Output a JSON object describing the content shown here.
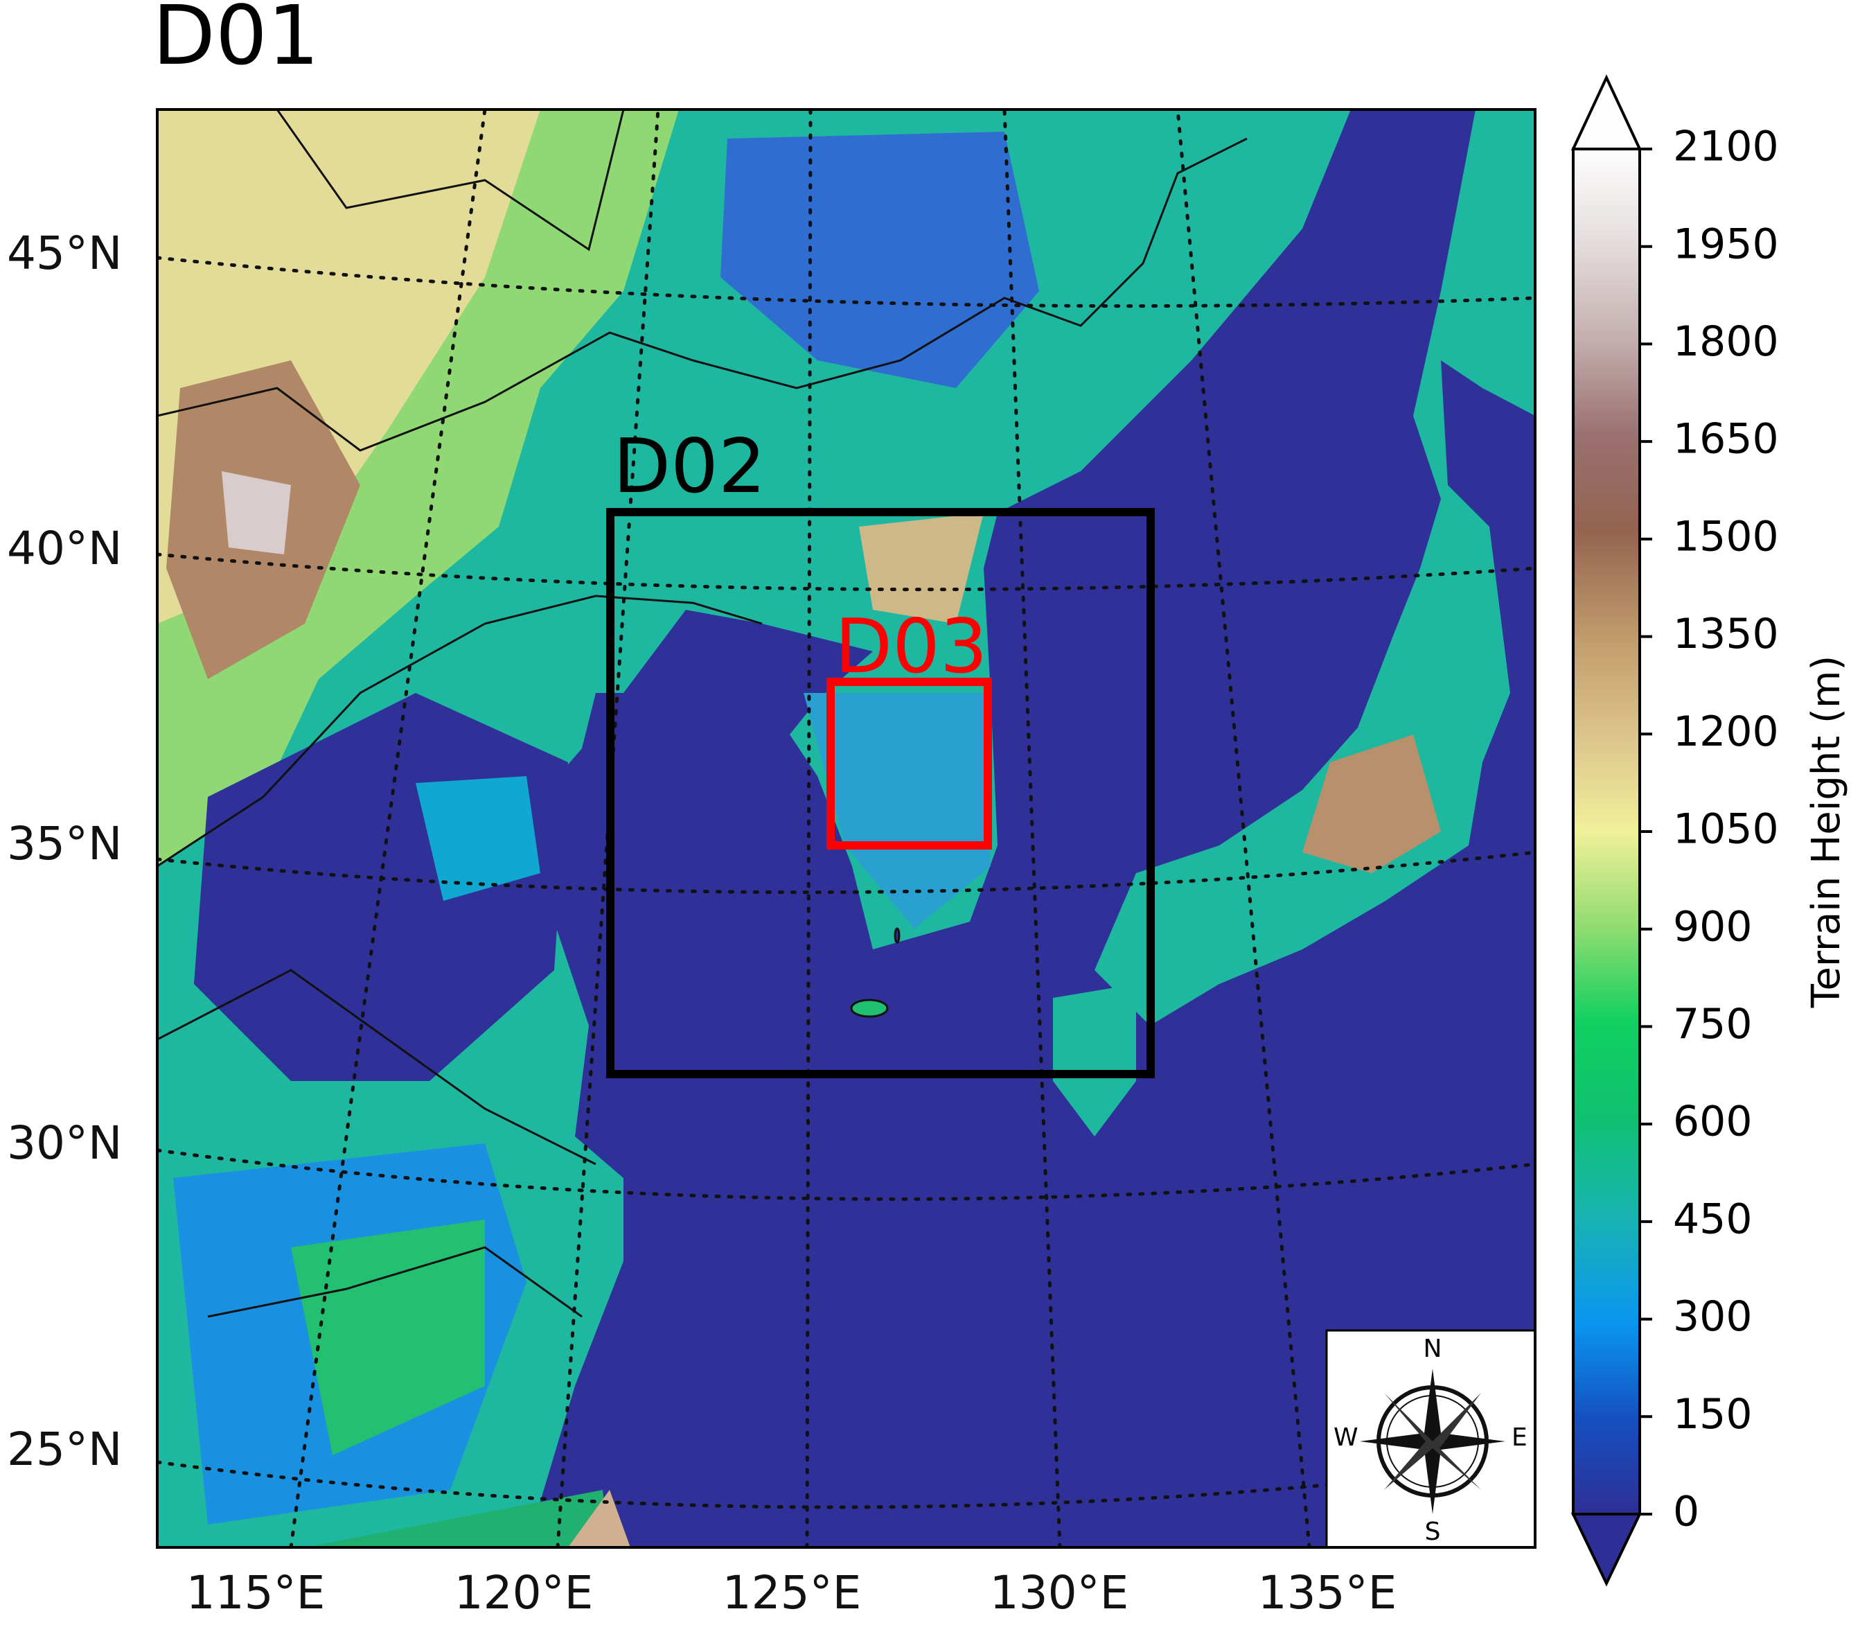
{
  "title": "D01",
  "domains": [
    "D02",
    "D03"
  ],
  "latitude_labels": [
    "45°N",
    "40°N",
    "35°N",
    "30°N",
    "25°N"
  ],
  "longitude_labels": [
    "115°E",
    "120°E",
    "125°E",
    "130°E",
    "135°E"
  ],
  "colorbar": {
    "label": "Terrain Height (m)",
    "ticks": [
      0,
      150,
      300,
      450,
      600,
      750,
      900,
      1050,
      1200,
      1350,
      1500,
      1650,
      1800,
      1950,
      2100
    ]
  },
  "compass": [
    "N",
    "E",
    "S",
    "W"
  ]
}
